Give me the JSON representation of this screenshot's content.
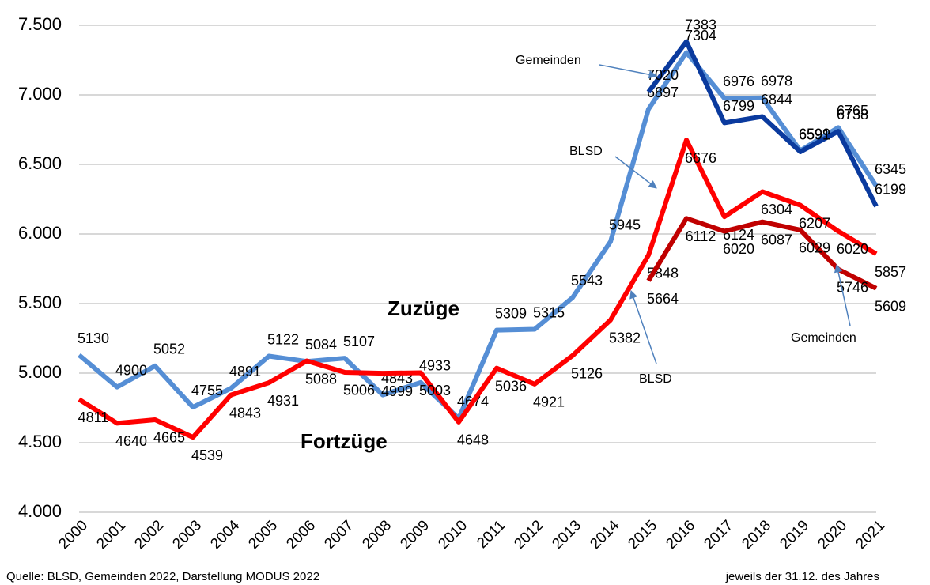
{
  "chart_data": {
    "type": "line",
    "categories": [
      "2000",
      "2001",
      "2002",
      "2003",
      "2004",
      "2005",
      "2006",
      "2007",
      "2008",
      "2009",
      "2010",
      "2011",
      "2012",
      "2013",
      "2014",
      "2015",
      "2016",
      "2017",
      "2018",
      "2019",
      "2020",
      "2021"
    ],
    "series": [
      {
        "color": "#558ed5",
        "values": [
          5130,
          4900,
          5052,
          4755,
          4891,
          5122,
          5084,
          5107,
          4843,
          4933,
          4674,
          5309,
          5315,
          5543,
          5945,
          6897,
          7304,
          6976,
          6978,
          6599,
          6765,
          6345
        ]
      },
      {
        "color": "#ff0000",
        "values": [
          4811,
          4640,
          4665,
          4539,
          4843,
          4931,
          5088,
          5006,
          4999,
          5003,
          4648,
          5036,
          4921,
          5126,
          5382,
          5848,
          6676,
          6124,
          6304,
          6207,
          6020,
          5857
        ]
      },
      {
        "color": "#0a3a9e",
        "values": [
          null,
          null,
          null,
          null,
          null,
          null,
          null,
          null,
          null,
          null,
          null,
          null,
          null,
          null,
          null,
          7020,
          7383,
          6799,
          6844,
          6591,
          6738,
          6199
        ]
      },
      {
        "color": "#c00000",
        "values": [
          null,
          null,
          null,
          null,
          null,
          null,
          null,
          null,
          null,
          null,
          null,
          null,
          null,
          null,
          null,
          5664,
          6112,
          6020,
          6087,
          6029,
          5746,
          5609
        ]
      }
    ],
    "ylim": [
      4000,
      7500
    ],
    "yticks": [
      {
        "value": 4000,
        "label": "4.000"
      },
      {
        "value": 4500,
        "label": "4.500"
      },
      {
        "value": 5000,
        "label": "5.000"
      },
      {
        "value": 5500,
        "label": "5.500"
      },
      {
        "value": 6000,
        "label": "6.000"
      },
      {
        "value": 6500,
        "label": "6.500"
      },
      {
        "value": 7000,
        "label": "7.000"
      },
      {
        "value": 7500,
        "label": "7.500"
      }
    ],
    "grid": true,
    "annotations": [
      "Zuzüge",
      "Fortzüge",
      "Gemeinden",
      "BLSD",
      "BLSD",
      "Gemeinden"
    ],
    "source": "Quelle: BLSD, Gemeinden 2022, Darstellung MODUS 2022",
    "note": "jeweils der 31.12. des Jahres"
  }
}
